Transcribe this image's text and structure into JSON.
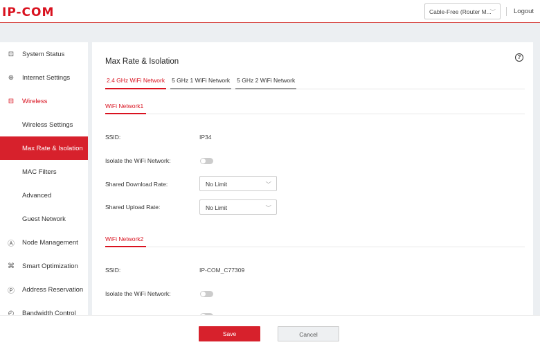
{
  "header": {
    "logo": "IP-COM",
    "mode_select": "Cable-Free (Router M...",
    "logout": "Logout"
  },
  "sidebar": {
    "items": [
      {
        "label": "System Status",
        "icon": "monitor-icon"
      },
      {
        "label": "Internet Settings",
        "icon": "globe-icon"
      },
      {
        "label": "Wireless",
        "icon": "wifi-screen-icon"
      },
      {
        "label": "Wireless Settings"
      },
      {
        "label": "Max Rate & Isolation"
      },
      {
        "label": "MAC Filters"
      },
      {
        "label": "Advanced"
      },
      {
        "label": "Guest Network"
      },
      {
        "label": "Node Management",
        "icon": "node-icon"
      },
      {
        "label": "Smart Optimization",
        "icon": "optimization-icon"
      },
      {
        "label": "Address Reservation",
        "icon": "reservation-icon"
      },
      {
        "label": "Bandwidth Control",
        "icon": "bandwidth-icon"
      }
    ]
  },
  "main": {
    "title": "Max Rate & Isolation",
    "tabs": [
      {
        "label": "2.4 GHz WiFi Network"
      },
      {
        "label": "5 GHz 1 WiFi Network"
      },
      {
        "label": "5 GHz 2 WiFi Network"
      }
    ],
    "network1": {
      "title": "WiFi Network1",
      "ssid_label": "SSID:",
      "ssid": "IP34",
      "isolate_label": "Isolate the WiFi Network:",
      "isolate": false,
      "download_label": "Shared Download Rate:",
      "download": "No Limit",
      "upload_label": "Shared Upload Rate:",
      "upload": "No Limit"
    },
    "network2": {
      "title": "WiFi Network2",
      "ssid_label": "SSID:",
      "ssid": "IP-COM_C77309",
      "isolate_label": "Isolate the WiFi Network:",
      "isolate": false
    }
  },
  "footer": {
    "save": "Save",
    "cancel": "Cancel"
  },
  "colors": {
    "accent": "#d7212c"
  }
}
